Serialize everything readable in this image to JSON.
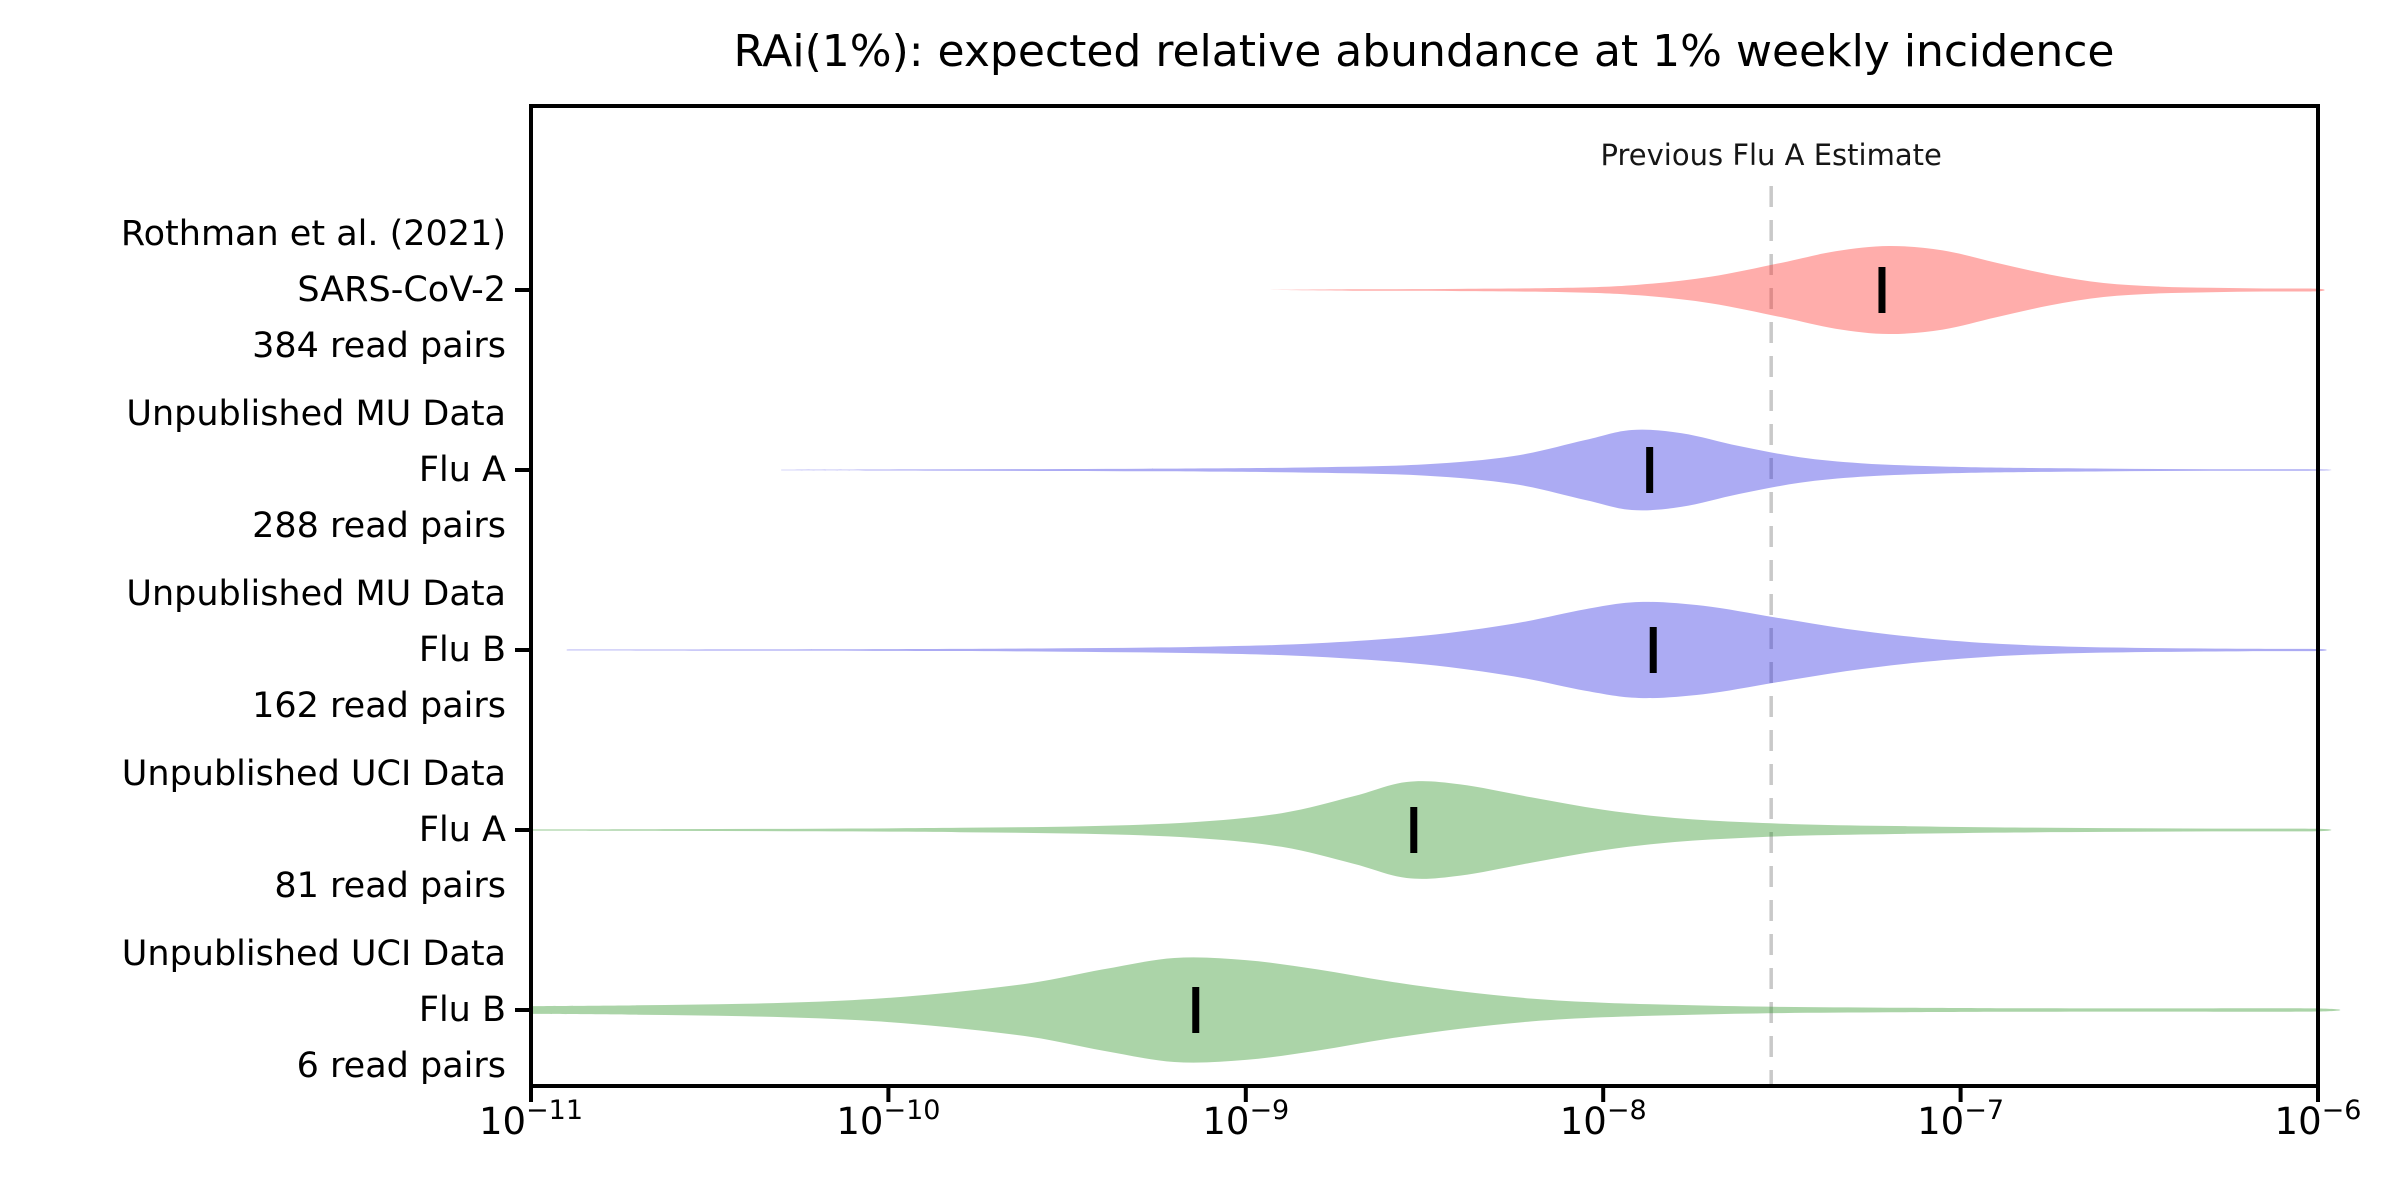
{
  "chart_data": {
    "type": "violin",
    "orientation": "horizontal",
    "title": "RAi(1%): expected relative abundance at 1% weekly incidence",
    "x_scale": "log10",
    "xlim_log10": [
      -11,
      -6
    ],
    "x_tick_base": "10",
    "x_tick_exponents": [
      "−11",
      "−10",
      "−9",
      "−8",
      "−7",
      "−6"
    ],
    "grid": false,
    "background_color": "#ffffff",
    "axis_color": "#000000",
    "median_marker_color": "#000000",
    "fill_opacity": 0.4,
    "reference_line": {
      "label": "Previous Flu A Estimate",
      "value": "3e-8",
      "log10": -7.53,
      "color": "#c9c9c9",
      "style": "dashed"
    },
    "rows": [
      {
        "label_lines": [
          "Rothman et al. (2021)",
          "SARS-CoV-2",
          "384 read pairs"
        ],
        "study": "Rothman et al. (2021)",
        "virus": "SARS-CoV-2",
        "read_pairs": 384,
        "color": "#FF322D",
        "median_log10": -7.22,
        "median_value": "6e-8",
        "amplitude": 44,
        "profile": [
          [
            -8.95,
            0.0
          ],
          [
            -8.7,
            0.015
          ],
          [
            -8.4,
            0.025
          ],
          [
            -8.1,
            0.05
          ],
          [
            -7.9,
            0.12
          ],
          [
            -7.7,
            0.3
          ],
          [
            -7.5,
            0.62
          ],
          [
            -7.35,
            0.88
          ],
          [
            -7.2,
            1.0
          ],
          [
            -7.05,
            0.9
          ],
          [
            -6.9,
            0.62
          ],
          [
            -6.75,
            0.35
          ],
          [
            -6.6,
            0.16
          ],
          [
            -6.45,
            0.08
          ],
          [
            -6.3,
            0.05
          ],
          [
            -6.15,
            0.035
          ],
          [
            -6.0,
            0.03
          ]
        ]
      },
      {
        "label_lines": [
          "Unpublished MU Data",
          "Flu A",
          "288 read pairs"
        ],
        "study": "Unpublished MU Data",
        "virus": "Flu A",
        "read_pairs": 288,
        "color": "#2F2DE1",
        "median_log10": -7.87,
        "median_value": "1.4e-8",
        "amplitude": 40,
        "profile": [
          [
            -10.3,
            0.008
          ],
          [
            -9.9,
            0.015
          ],
          [
            -9.5,
            0.025
          ],
          [
            -9.1,
            0.04
          ],
          [
            -8.8,
            0.07
          ],
          [
            -8.5,
            0.14
          ],
          [
            -8.25,
            0.35
          ],
          [
            -8.05,
            0.75
          ],
          [
            -7.92,
            1.0
          ],
          [
            -7.78,
            0.92
          ],
          [
            -7.62,
            0.6
          ],
          [
            -7.45,
            0.32
          ],
          [
            -7.28,
            0.17
          ],
          [
            -7.1,
            0.1
          ],
          [
            -6.9,
            0.06
          ],
          [
            -6.6,
            0.035
          ],
          [
            -6.3,
            0.02
          ],
          [
            -6.0,
            0.015
          ]
        ]
      },
      {
        "label_lines": [
          "Unpublished MU Data",
          "Flu B",
          "162 read pairs"
        ],
        "study": "Unpublished MU Data",
        "virus": "Flu B",
        "read_pairs": 162,
        "color": "#2F2DE1",
        "median_log10": -7.86,
        "median_value": "1.4e-8",
        "amplitude": 48,
        "profile": [
          [
            -10.9,
            0.008
          ],
          [
            -10.4,
            0.012
          ],
          [
            -9.9,
            0.02
          ],
          [
            -9.5,
            0.035
          ],
          [
            -9.1,
            0.07
          ],
          [
            -8.8,
            0.14
          ],
          [
            -8.5,
            0.3
          ],
          [
            -8.25,
            0.55
          ],
          [
            -8.05,
            0.85
          ],
          [
            -7.9,
            1.0
          ],
          [
            -7.72,
            0.92
          ],
          [
            -7.52,
            0.68
          ],
          [
            -7.32,
            0.44
          ],
          [
            -7.12,
            0.26
          ],
          [
            -6.92,
            0.14
          ],
          [
            -6.7,
            0.07
          ],
          [
            -6.45,
            0.04
          ],
          [
            -6.2,
            0.025
          ],
          [
            -6.0,
            0.02
          ]
        ]
      },
      {
        "label_lines": [
          "Unpublished UCI Data",
          "Flu A",
          "81 read pairs"
        ],
        "study": "Unpublished UCI Data",
        "virus": "Flu A",
        "read_pairs": 81,
        "color": "#2E9325",
        "median_log10": -8.53,
        "median_value": "3e-9",
        "amplitude": 48,
        "profile": [
          [
            -11.0,
            0.012
          ],
          [
            -10.6,
            0.018
          ],
          [
            -10.2,
            0.028
          ],
          [
            -9.8,
            0.045
          ],
          [
            -9.45,
            0.08
          ],
          [
            -9.15,
            0.16
          ],
          [
            -8.9,
            0.35
          ],
          [
            -8.7,
            0.7
          ],
          [
            -8.55,
            1.0
          ],
          [
            -8.4,
            0.95
          ],
          [
            -8.2,
            0.68
          ],
          [
            -8.0,
            0.42
          ],
          [
            -7.8,
            0.25
          ],
          [
            -7.6,
            0.16
          ],
          [
            -7.4,
            0.11
          ],
          [
            -7.15,
            0.08
          ],
          [
            -6.9,
            0.055
          ],
          [
            -6.6,
            0.04
          ],
          [
            -6.3,
            0.03
          ],
          [
            -6.0,
            0.025
          ]
        ]
      },
      {
        "label_lines": [
          "Unpublished UCI Data",
          "Flu B",
          "6 read pairs"
        ],
        "study": "Unpublished UCI Data",
        "virus": "Flu B",
        "read_pairs": 6,
        "color": "#2E9325",
        "median_log10": -9.14,
        "median_value": "7e-10",
        "amplitude": 52,
        "profile": [
          [
            -11.0,
            0.075
          ],
          [
            -10.7,
            0.09
          ],
          [
            -10.4,
            0.12
          ],
          [
            -10.1,
            0.19
          ],
          [
            -9.85,
            0.32
          ],
          [
            -9.6,
            0.52
          ],
          [
            -9.4,
            0.78
          ],
          [
            -9.2,
            1.0
          ],
          [
            -9.0,
            0.96
          ],
          [
            -8.8,
            0.78
          ],
          [
            -8.6,
            0.55
          ],
          [
            -8.4,
            0.36
          ],
          [
            -8.2,
            0.22
          ],
          [
            -8.0,
            0.14
          ],
          [
            -7.75,
            0.09
          ],
          [
            -7.5,
            0.06
          ],
          [
            -7.2,
            0.045
          ],
          [
            -6.9,
            0.035
          ],
          [
            -6.5,
            0.03
          ],
          [
            -6.0,
            0.028
          ]
        ]
      }
    ]
  }
}
